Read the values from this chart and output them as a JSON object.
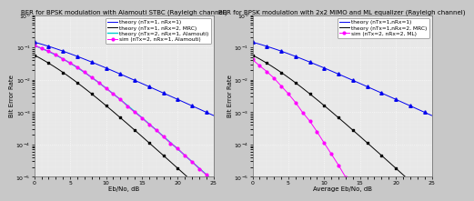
{
  "plot1": {
    "title": "BER for BPSK modulation with Alamouti STBC (Rayleigh channel)",
    "xlabel": "Eb/No, dB",
    "ylabel": "Bit Error Rate",
    "xlim": [
      0,
      25
    ],
    "ylim": [
      1e-05,
      1.0
    ],
    "legend_labels": [
      "theory (nTx=1, nRx=1)",
      "theory (nTx=1, nRx=2, MRC)",
      "theory (nTx=2, nRx=1, Alamouti)",
      "sim (nTx=2, nRx=1, Alamouti)"
    ],
    "colors": [
      "#0000ee",
      "#000000",
      "#00cccc",
      "#ff00ff"
    ],
    "markers": [
      "^",
      "s",
      "none",
      "o"
    ]
  },
  "plot2": {
    "title": "BER for BPSK modulation with 2x2 MIMO and ML equalizer (Rayleigh channel)",
    "xlabel": "Average Eb/No, dB",
    "ylabel": "Bit Error Rate",
    "xlim": [
      0,
      25
    ],
    "ylim": [
      1e-05,
      1.0
    ],
    "legend_labels": [
      "theory (nTx=1,nRx=1)",
      "theory (nTx=1,nRx=2, MRC)",
      "sim (nTx=2, nRx=2, ML)"
    ],
    "colors": [
      "#0000ee",
      "#000000",
      "#ff00ff"
    ],
    "markers": [
      "^",
      "s",
      "o"
    ]
  },
  "fig_bg": "#c8c8c8",
  "plot_bg": "#e8e8e8",
  "grid_color": "#ffffff",
  "title_fontsize": 5.0,
  "label_fontsize": 5.0,
  "tick_fontsize": 4.5,
  "legend_fontsize": 4.2,
  "linewidth": 0.7,
  "markersize": 2.0,
  "markevery": 2
}
